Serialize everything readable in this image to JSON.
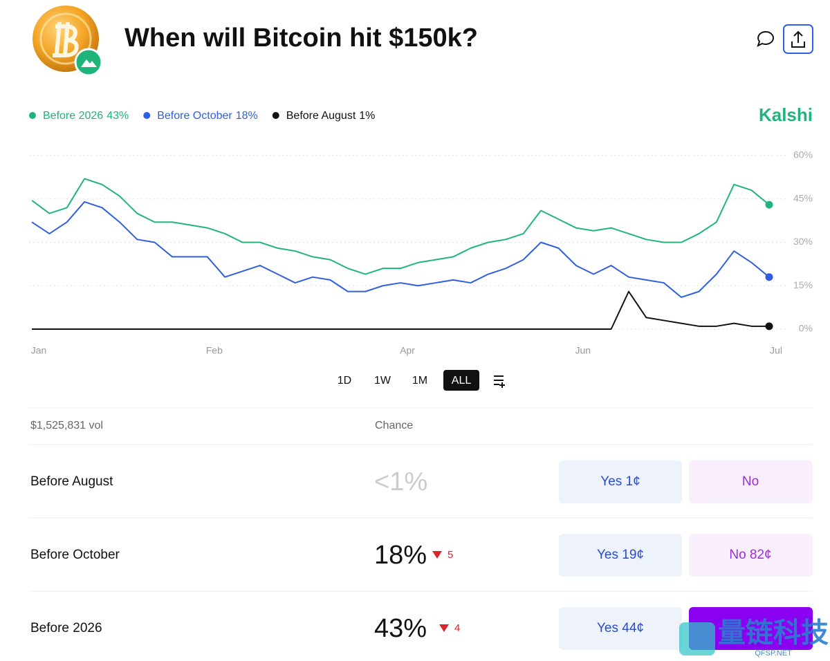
{
  "header": {
    "title": "When will Bitcoin hit $150k?",
    "brand": "Kalshi"
  },
  "chart_data": {
    "type": "line",
    "categories": [
      "Jan",
      null,
      null,
      null,
      null,
      null,
      null,
      null,
      null,
      null,
      "Feb",
      null,
      null,
      null,
      null,
      null,
      null,
      null,
      null,
      null,
      null,
      "Apr",
      null,
      null,
      null,
      null,
      null,
      null,
      null,
      null,
      null,
      "Jun",
      null,
      null,
      null,
      null,
      null,
      null,
      null,
      null,
      null,
      null,
      "Jul"
    ],
    "series": [
      {
        "name": "Before 2026",
        "legend_chance": "43%",
        "color": "#1fb57a",
        "values": [
          44.5,
          40,
          42,
          52,
          50,
          46,
          40,
          37,
          37,
          36,
          35,
          33,
          30,
          30,
          28,
          27,
          25,
          24,
          21,
          19,
          21,
          21,
          23,
          24,
          25,
          28,
          30,
          31,
          33,
          41,
          38,
          35,
          34,
          35,
          33,
          31,
          30,
          30,
          33,
          37,
          50,
          48,
          43
        ]
      },
      {
        "name": "Before October",
        "legend_chance": "18%",
        "color": "#2f5ee0",
        "values": [
          37,
          33,
          37,
          44,
          42,
          37,
          31,
          30,
          25,
          25,
          25,
          18,
          20,
          22,
          19,
          16,
          18,
          17,
          13,
          13,
          15,
          16,
          15,
          16,
          17,
          16,
          19,
          21,
          24,
          30,
          28,
          22,
          19,
          22,
          18,
          17,
          16,
          11,
          13,
          19,
          27,
          23,
          18
        ]
      },
      {
        "name": "Before August",
        "legend_chance": "1%",
        "color": "#111111",
        "values": [
          0,
          0,
          0,
          0,
          0,
          0,
          0,
          0,
          0,
          0,
          0,
          0,
          0,
          0,
          0,
          0,
          0,
          0,
          0,
          0,
          0,
          0,
          0,
          0,
          0,
          0,
          0,
          0,
          0,
          0,
          0,
          0,
          0,
          0,
          13,
          4,
          3,
          2,
          1,
          1,
          2,
          1,
          1
        ]
      }
    ],
    "ylim": [
      0,
      60
    ],
    "yticks": [
      {
        "value": 0,
        "label": "0%"
      },
      {
        "value": 15,
        "label": "15%"
      },
      {
        "value": 30,
        "label": "30%"
      },
      {
        "value": 45,
        "label": "45%"
      },
      {
        "value": 60,
        "label": "60%"
      }
    ],
    "grid": true,
    "legend": "top-left"
  },
  "range_buttons": [
    "1D",
    "1W",
    "1M",
    "ALL"
  ],
  "selected_range": "ALL",
  "table": {
    "volume": "$1,525,831 vol",
    "chance_header": "Chance",
    "rows": [
      {
        "name": "Before August",
        "chance": "<1%",
        "yes": "Yes 1¢",
        "no": "No"
      },
      {
        "name": "Before October",
        "chance": "18%",
        "change": 5,
        "yes": "Yes 19¢",
        "no": "No 82¢"
      },
      {
        "name": "Before 2026",
        "chance": "43%",
        "change": 4,
        "yes": "Yes 44¢"
      }
    ]
  },
  "watermark": {
    "text": "量链科技",
    "site": "QFSP.NET"
  }
}
